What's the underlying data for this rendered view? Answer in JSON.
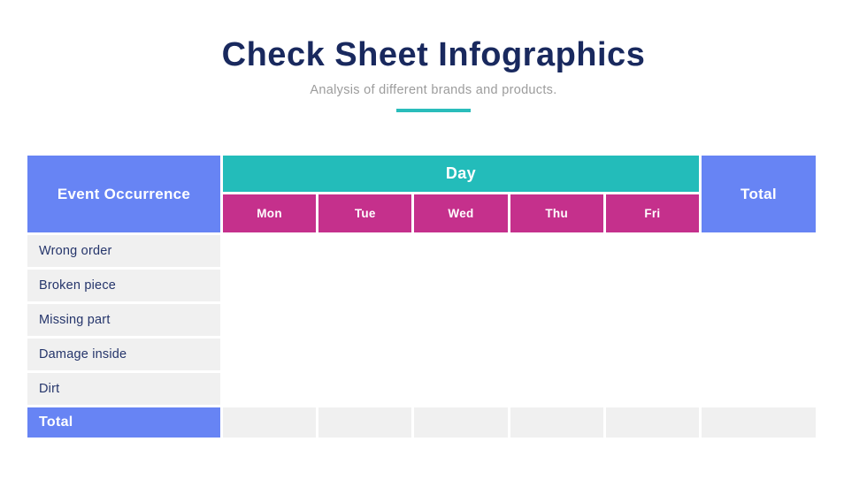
{
  "slide": {
    "title": "Check Sheet Infographics",
    "subtitle": "Analysis of different brands and products.",
    "colors": {
      "title_navy": "#19295E",
      "subtitle_gray": "#9C9C9C",
      "accent_teal": "#2ABDBB",
      "header_blue": "#6784F4",
      "group_header_teal": "#23BCBA",
      "day_magenta": "#C5308C",
      "cell_gray": "#F0F0F0",
      "row_label_navy": "#25356B"
    }
  },
  "table": {
    "corner_header": "Event Occurrence",
    "group_header": "Day",
    "day_columns": [
      "Mon",
      "Tue",
      "Wed",
      "Thu",
      "Fri"
    ],
    "total_column_header": "Total",
    "rows": [
      {
        "label": "Wrong order",
        "values": [
          "",
          "",
          "",
          "",
          ""
        ],
        "total": ""
      },
      {
        "label": "Broken piece",
        "values": [
          "",
          "",
          "",
          "",
          ""
        ],
        "total": ""
      },
      {
        "label": "Missing part",
        "values": [
          "",
          "",
          "",
          "",
          ""
        ],
        "total": ""
      },
      {
        "label": "Damage inside",
        "values": [
          "",
          "",
          "",
          "",
          ""
        ],
        "total": ""
      },
      {
        "label": "Dirt",
        "values": [
          "",
          "",
          "",
          "",
          ""
        ],
        "total": ""
      }
    ],
    "total_row": {
      "label": "Total",
      "values": [
        "",
        "",
        "",
        "",
        "",
        ""
      ]
    }
  },
  "chart_data": {
    "type": "table",
    "title": "Check Sheet Infographics",
    "subtitle": "Analysis of different brands and products.",
    "row_header": "Event Occurrence",
    "column_group": "Day",
    "columns": [
      "Mon",
      "Tue",
      "Wed",
      "Thu",
      "Fri",
      "Total"
    ],
    "rows": [
      "Wrong order",
      "Broken piece",
      "Missing part",
      "Damage inside",
      "Dirt",
      "Total"
    ],
    "values": "empty check sheet - no values filled in"
  }
}
